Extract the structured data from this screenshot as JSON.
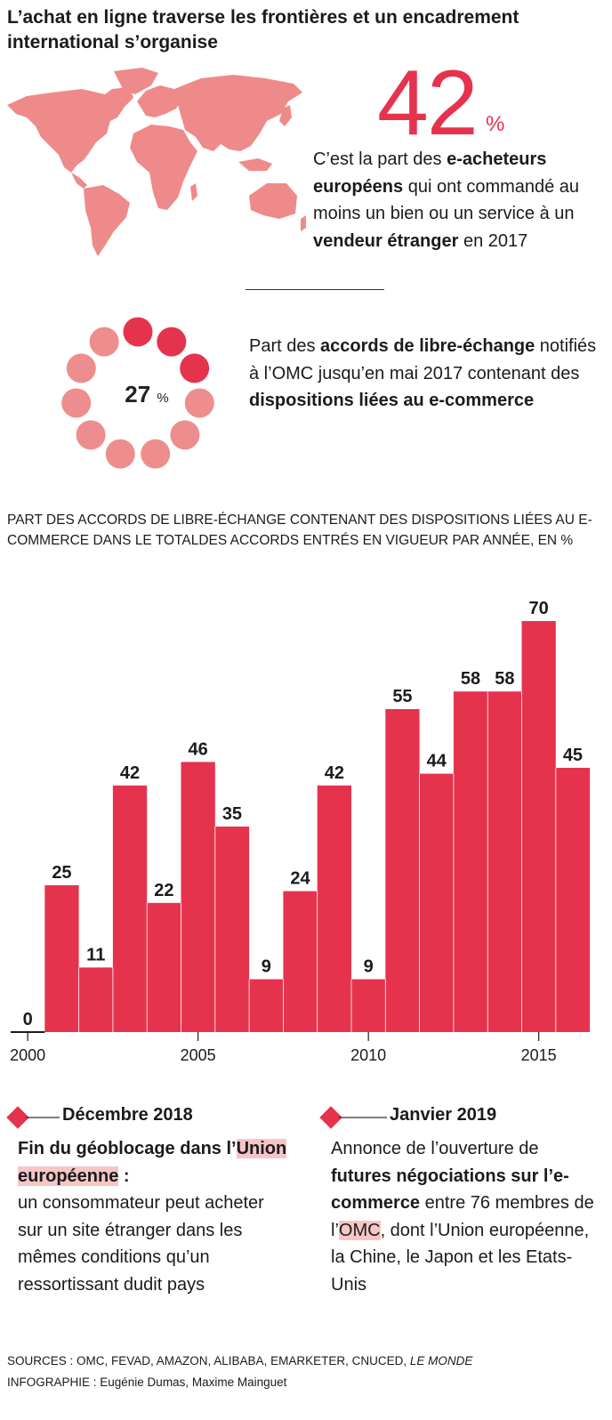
{
  "title": "L’achat en ligne traverse les frontières et un encadrement international s’organise",
  "stat1": {
    "value": "42",
    "unit": "%",
    "text_before": "C’est la part des ",
    "bold1": "e-acheteurs européens",
    "text_mid": " qui ont commandé au moins un bien ou un service à un ",
    "bold2": "vendeur étranger",
    "text_after": " en 2017"
  },
  "stat2": {
    "value": "27",
    "unit": "%",
    "share": 0.27,
    "text_before": "Part des ",
    "bold1": "accords de libre-échange",
    "text_mid": " notifiés à l’OMC jusqu’en mai 2017 contenant des ",
    "bold2": "dispositions liées au e-commerce"
  },
  "chart_title": "PART DES ACCORDS DE LIBRE-ÉCHANGE CONTENANT DES DISPOSITIONS LIÉES AU E-COMMERCE DANS LE TOTALDES ACCORDS ENTRÉS EN VIGUEUR PAR ANNÉE, EN %",
  "chart_data": {
    "type": "bar",
    "title": "PART DES ACCORDS DE LIBRE-ÉCHANGE CONTENANT DES DISPOSITIONS LIÉES AU E-COMMERCE DANS LE TOTALDES ACCORDS ENTRÉS EN VIGUEUR PAR ANNÉE, EN %",
    "categories": [
      2000,
      2001,
      2002,
      2003,
      2004,
      2005,
      2006,
      2007,
      2008,
      2009,
      2010,
      2011,
      2012,
      2013,
      2014,
      2015,
      2016
    ],
    "values": [
      0,
      25,
      11,
      42,
      22,
      46,
      35,
      9,
      24,
      42,
      9,
      55,
      44,
      58,
      58,
      70,
      45
    ],
    "x_ticks": [
      2000,
      2005,
      2010,
      2015
    ],
    "xlabel": "",
    "ylabel": "%",
    "ylim": [
      0,
      70
    ],
    "color": "#e5334e"
  },
  "events": [
    {
      "date": "Décembre 2018",
      "title_part1": "Fin du géoblocage dans l’",
      "title_highlight": "Union européenne",
      "title_part2": " :",
      "body": "un consommateur peut acheter sur un site étranger dans les mêmes conditions qu’un ressortissant dudit pays"
    },
    {
      "date": "Janvier 2019",
      "body_part1": "Annonce de l’ouverture de ",
      "bold": "futures négociations sur l’e-commerce",
      "body_part2": " entre 76 membres de l’",
      "highlight": "OMC",
      "body_part3": ", dont l’Union européenne, la Chine, le Japon et les Etats-Unis"
    }
  ],
  "sources": {
    "label": "SOURCES : OMC, FEVAD, AMAZON, ALIBABA, EMARKETER, CNUCED, ",
    "italic": "LE MONDE",
    "credit": "INFOGRAPHIE : Eugénie Dumas, Maxime Mainguet"
  },
  "colors": {
    "accent": "#e5334e",
    "light": "#ee8d8d",
    "map": "#ef8a8a",
    "highlight": "#f7c5c6"
  }
}
